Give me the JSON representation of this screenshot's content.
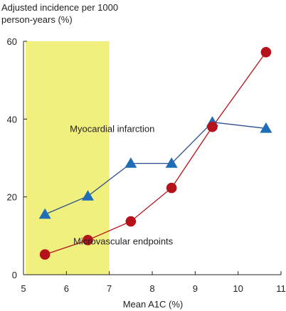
{
  "chart_data": {
    "type": "line",
    "ylabel_lines": [
      "Adjusted incidence per 1000",
      "person-years (%)"
    ],
    "xlabel": "Mean A1C (%)",
    "xlim": [
      5,
      11
    ],
    "ylim": [
      0,
      60
    ],
    "x_ticks": [
      5,
      6,
      7,
      8,
      9,
      10,
      11
    ],
    "y_ticks": [
      0,
      20,
      40,
      60
    ],
    "shaded_region": {
      "x_range": [
        5,
        7
      ],
      "color": "#eff07d"
    },
    "series": [
      {
        "name": "Myocardial infarction",
        "marker": "triangle",
        "color": "#1f6db5",
        "line_color": "#2b4f8f",
        "x": [
          5.5,
          6.5,
          7.5,
          8.45,
          9.4,
          10.65
        ],
        "y": [
          15.5,
          20.2,
          28.6,
          28.6,
          39.2,
          37.6
        ]
      },
      {
        "name": "Microvascular endpoints",
        "marker": "circle",
        "color": "#b5121b",
        "line_color": "#b5121b",
        "x": [
          5.5,
          6.5,
          7.5,
          8.45,
          9.4,
          10.65
        ],
        "y": [
          5.2,
          8.9,
          13.7,
          22.3,
          38.0,
          57.2
        ]
      }
    ],
    "annotations": [
      {
        "text": "Myocardial infarction",
        "x": 6.08,
        "y": 36.7
      },
      {
        "text": "Microvascular endpoints",
        "x": 6.16,
        "y": 7.8
      }
    ]
  }
}
